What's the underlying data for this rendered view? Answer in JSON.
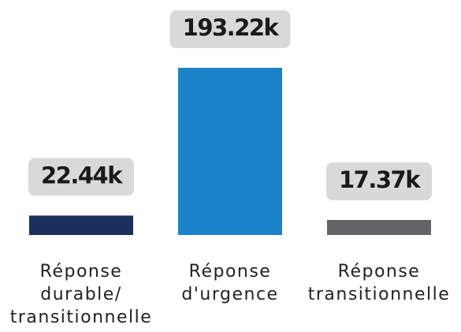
{
  "chart_data": {
    "type": "bar",
    "categories": [
      "Réponse durable/ transitionnelle",
      "Réponse d'urgence",
      "Réponse transitionnelle"
    ],
    "values": [
      22.44,
      193.22,
      17.37
    ],
    "value_labels": [
      "22.44k",
      "193.22k",
      "17.37k"
    ],
    "colors": [
      "#1b2f5c",
      "#1a82c8",
      "#636466"
    ]
  }
}
